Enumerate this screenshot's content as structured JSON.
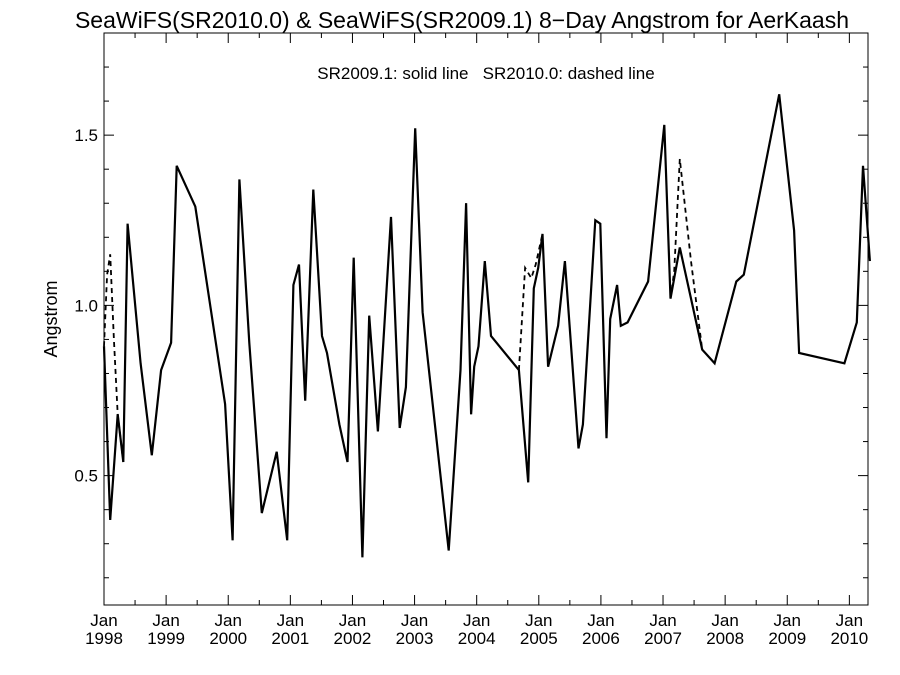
{
  "chart_data": {
    "type": "line",
    "title": "SeaWiFS(SR2010.0) & SeaWiFS(SR2009.1) 8−Day Angstrom for AerKaash",
    "annotation": "SR2009.1: solid line   SR2010.0: dashed line",
    "xlabel": "",
    "ylabel": "Angstrom",
    "xlim": [
      1998.0,
      2010.3
    ],
    "ylim": [
      0.12,
      1.8
    ],
    "y_ticks": [
      0.5,
      1.0,
      1.5
    ],
    "y_tick_labels": [
      "0.5",
      "1.0",
      "1.5"
    ],
    "x_ticks": [
      {
        "year": 1998,
        "month": "Jan"
      },
      {
        "year": 1999,
        "month": "Jan"
      },
      {
        "year": 2000,
        "month": "Jan"
      },
      {
        "year": 2001,
        "month": "Jan"
      },
      {
        "year": 2002,
        "month": "Jan"
      },
      {
        "year": 2003,
        "month": "Jan"
      },
      {
        "year": 2004,
        "month": "Jan"
      },
      {
        "year": 2005,
        "month": "Jan"
      },
      {
        "year": 2006,
        "month": "Jan"
      },
      {
        "year": 2007,
        "month": "Jan"
      },
      {
        "year": 2008,
        "month": "Jan"
      },
      {
        "year": 2009,
        "month": "Jan"
      },
      {
        "year": 2010,
        "month": "Jan"
      }
    ],
    "grid": false,
    "series": [
      {
        "name": "SR2009.1",
        "style": "solid",
        "color": "#000000",
        "x": [
          1998.0,
          1998.1,
          1998.22,
          1998.31,
          1998.38,
          1998.59,
          1998.77,
          1998.92,
          1999.08,
          1999.17,
          1999.47,
          1999.95,
          2000.07,
          2000.18,
          2000.34,
          2000.54,
          2000.78,
          2000.95,
          2001.05,
          2001.14,
          2001.24,
          2001.37,
          2001.51,
          2001.59,
          2001.79,
          2001.92,
          2002.02,
          2002.16,
          2002.27,
          2002.41,
          2002.62,
          2002.76,
          2002.86,
          2003.01,
          2003.13,
          2003.55,
          2003.74,
          2003.83,
          2003.91,
          2003.96,
          2004.03,
          2004.13,
          2004.23,
          2004.68,
          2004.83,
          2004.92,
          2004.99,
          2005.06,
          2005.15,
          2005.31,
          2005.42,
          2005.64,
          2005.71,
          2005.91,
          2005.99,
          2006.09,
          2006.15,
          2006.26,
          2006.32,
          2006.43,
          2006.76,
          2007.02,
          2007.12,
          2007.27,
          2007.63,
          2007.83,
          2008.18,
          2008.3,
          2008.87,
          2009.11,
          2009.19,
          2009.92,
          2010.12,
          2010.22,
          2010.33
        ],
        "y": [
          0.88,
          0.37,
          0.68,
          0.54,
          1.24,
          0.83,
          0.56,
          0.81,
          0.89,
          1.41,
          1.29,
          0.71,
          0.31,
          1.37,
          0.89,
          0.39,
          0.57,
          0.31,
          1.06,
          1.12,
          0.72,
          1.34,
          0.91,
          0.86,
          0.65,
          0.54,
          1.14,
          0.26,
          0.97,
          0.63,
          1.26,
          0.64,
          0.76,
          1.52,
          0.98,
          0.28,
          0.81,
          1.3,
          0.68,
          0.82,
          0.88,
          1.13,
          0.91,
          0.81,
          0.48,
          1.05,
          1.11,
          1.21,
          0.82,
          0.94,
          1.13,
          0.58,
          0.65,
          1.25,
          1.24,
          0.61,
          0.96,
          1.06,
          0.94,
          0.95,
          1.07,
          1.53,
          1.02,
          1.17,
          0.87,
          0.83,
          1.07,
          1.09,
          1.62,
          1.22,
          0.86,
          0.83,
          0.95,
          1.41,
          1.13
        ]
      },
      {
        "name": "SR2010.0",
        "style": "dashed",
        "color": "#000000",
        "x": [
          1998.0,
          1998.05,
          1998.1,
          1998.16,
          1998.22,
          1998.31
        ],
        "y": [
          0.88,
          1.09,
          1.15,
          0.9,
          0.68,
          0.54
        ]
      },
      {
        "name": "SR2010.0",
        "style": "dashed",
        "color": "#000000",
        "x": [
          2004.68,
          2004.78,
          2004.88,
          2004.95,
          2005.06
        ],
        "y": [
          0.81,
          1.11,
          1.08,
          1.12,
          1.21
        ]
      },
      {
        "name": "SR2010.0",
        "style": "dashed",
        "color": "#000000",
        "x": [
          2007.12,
          2007.18,
          2007.27,
          2007.45,
          2007.63
        ],
        "y": [
          1.02,
          1.1,
          1.43,
          1.13,
          0.87
        ]
      }
    ]
  }
}
